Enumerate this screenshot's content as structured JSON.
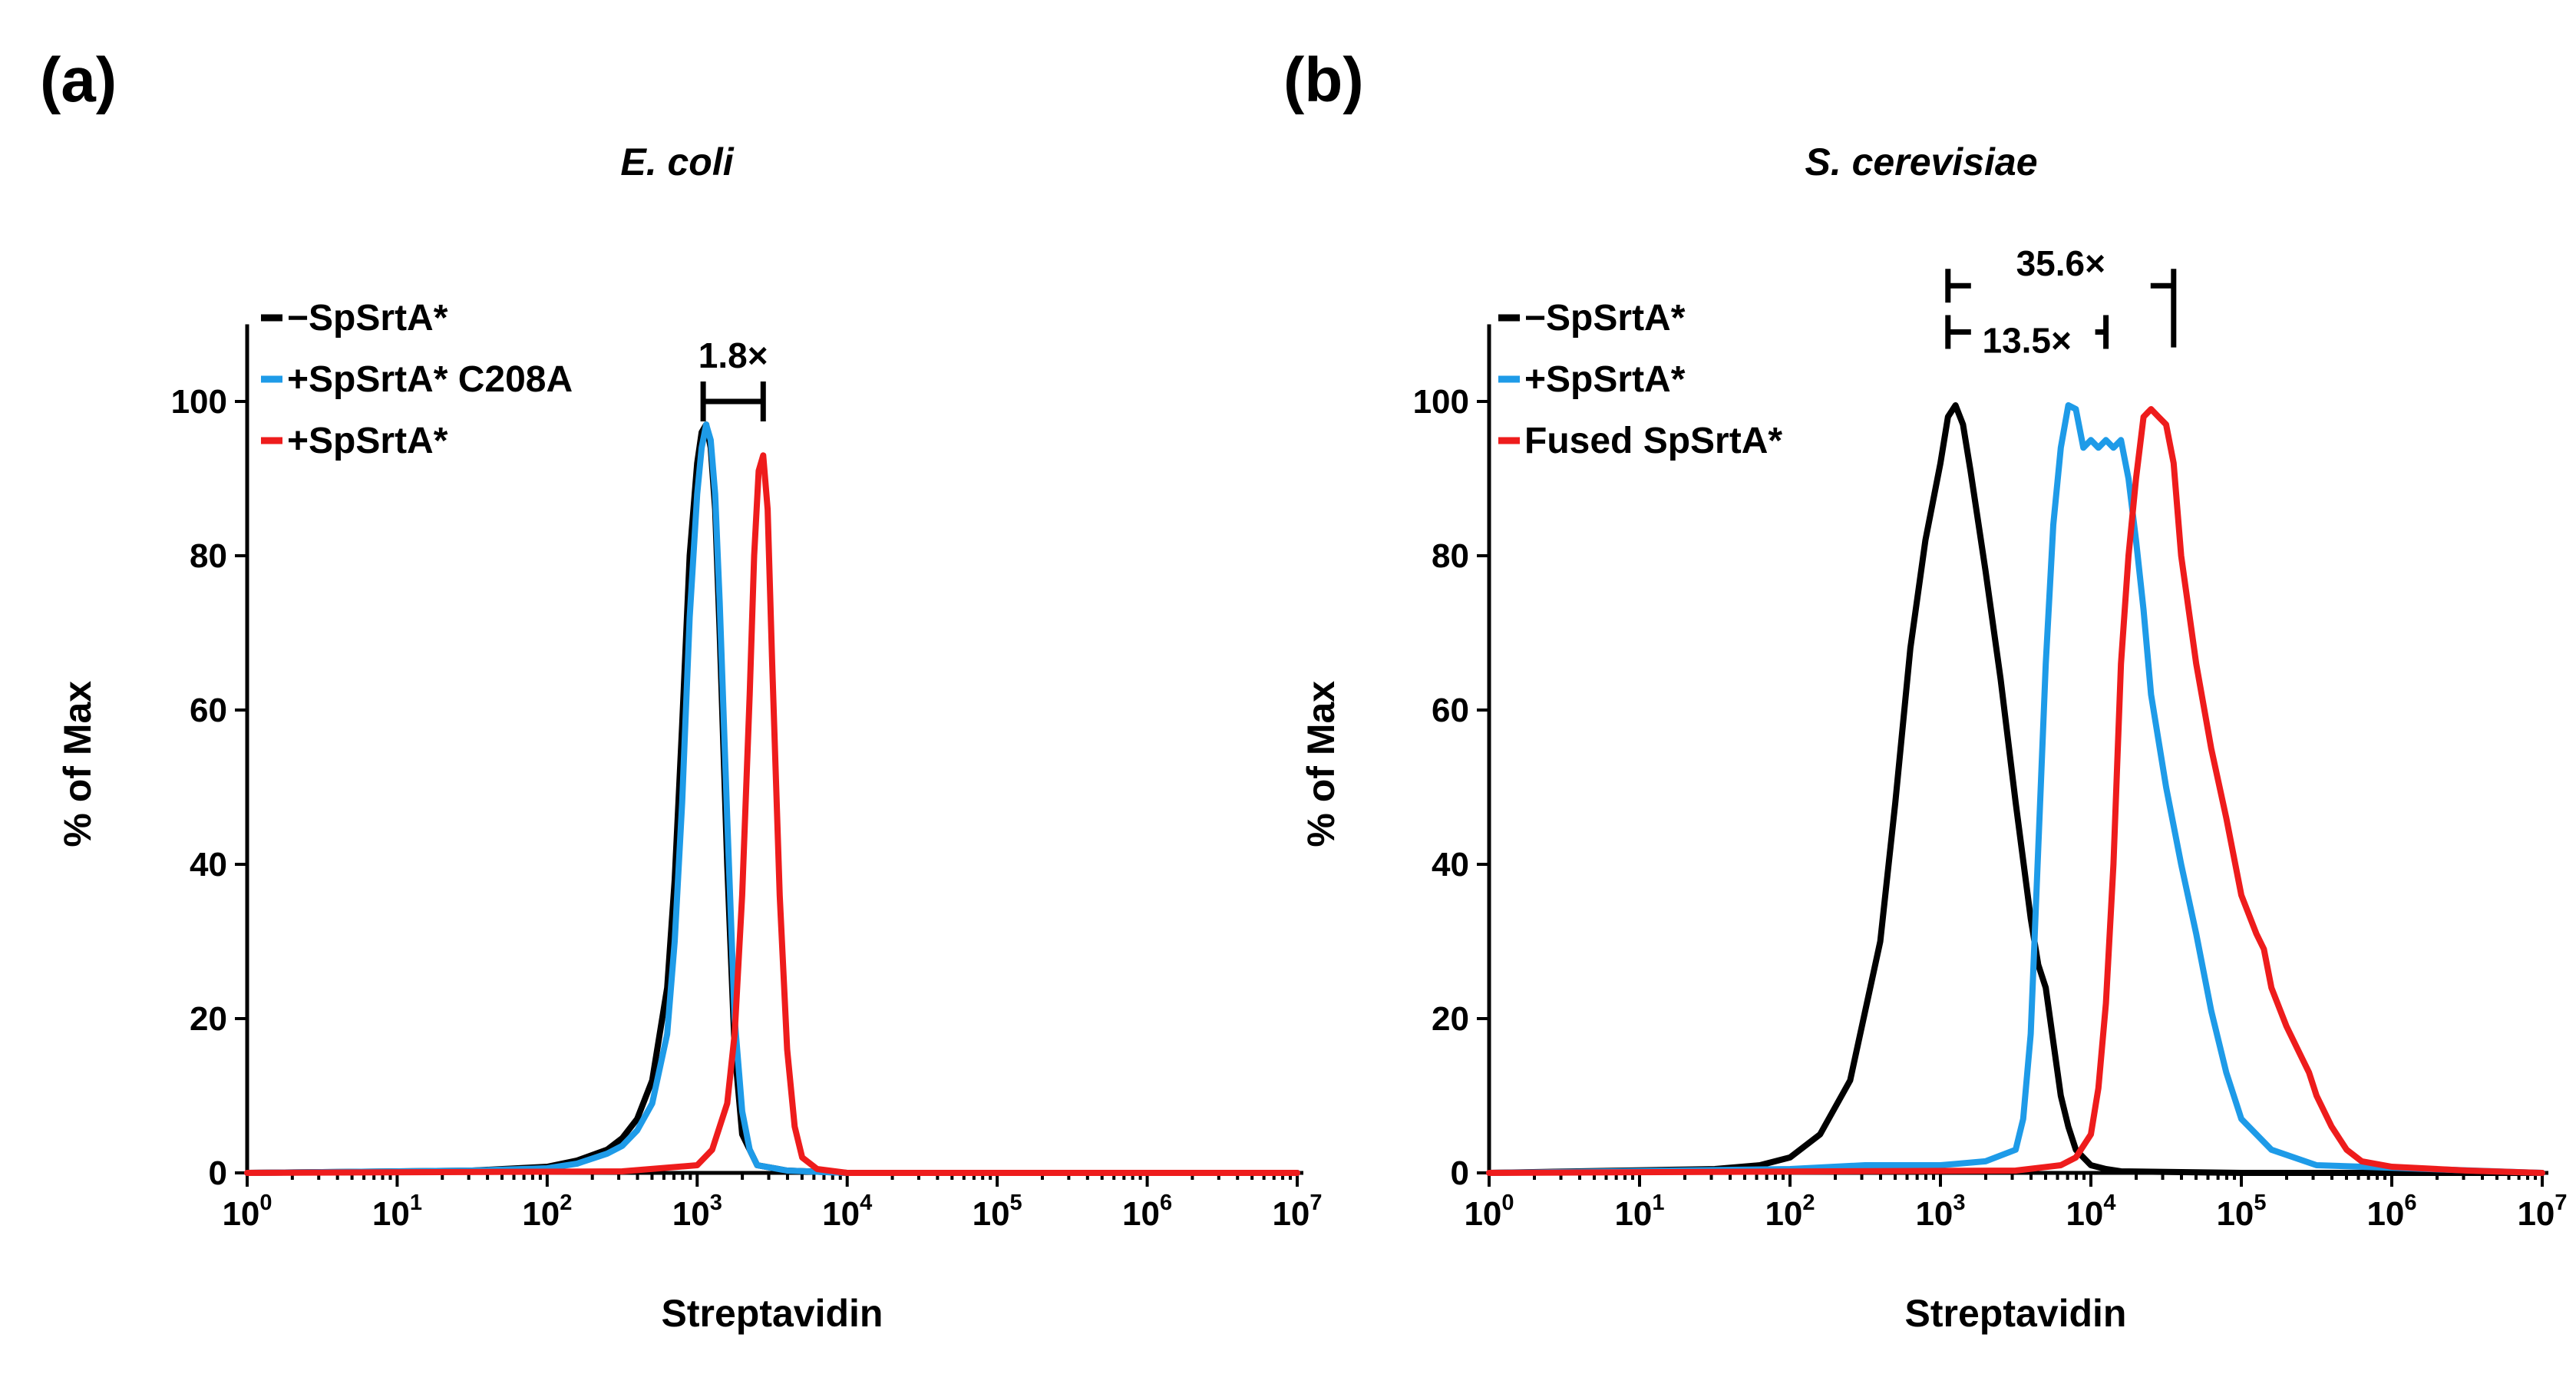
{
  "panels": [
    {
      "letter": "(a)"
    },
    {
      "letter": "(b)"
    }
  ],
  "chart_data": [
    {
      "type": "line",
      "title": "E. coli",
      "xlabel": "Streptavidin",
      "ylabel": "% of Max",
      "xscale": "log10",
      "xlim_exp": [
        0,
        7
      ],
      "ylim": [
        0,
        110
      ],
      "yticks": [
        0,
        20,
        40,
        60,
        80,
        100
      ],
      "xtick_base": "10",
      "xtick_exponents": [
        "0",
        "1",
        "2",
        "3",
        "4",
        "5",
        "6",
        "7"
      ],
      "legend_position": "top-left",
      "series": [
        {
          "name": "−SpSrtA*",
          "color": "#000000",
          "x": [
            0,
            1.5,
            2,
            2.2,
            2.4,
            2.5,
            2.6,
            2.7,
            2.8,
            2.85,
            2.9,
            2.95,
            3.0,
            3.03,
            3.06,
            3.09,
            3.12,
            3.15,
            3.2,
            3.25,
            3.3,
            3.4,
            3.6,
            4.0,
            7.0
          ],
          "y": [
            0,
            0.3,
            0.8,
            1.6,
            3,
            4.5,
            7,
            12,
            24,
            38,
            58,
            80,
            92,
            96,
            97,
            94,
            86,
            70,
            40,
            16,
            5,
            1,
            0.3,
            0,
            0
          ]
        },
        {
          "name": "+SpSrtA* C208A",
          "color": "#1e9be8",
          "x": [
            0,
            1.5,
            2,
            2.2,
            2.4,
            2.5,
            2.6,
            2.7,
            2.8,
            2.85,
            2.9,
            2.95,
            3.0,
            3.03,
            3.06,
            3.09,
            3.12,
            3.15,
            3.2,
            3.25,
            3.3,
            3.35,
            3.4,
            3.6,
            4.0,
            7.0
          ],
          "y": [
            0,
            0.3,
            0.6,
            1.2,
            2.5,
            3.5,
            5.5,
            9,
            18,
            30,
            48,
            72,
            88,
            94,
            97,
            95,
            88,
            74,
            46,
            20,
            8,
            3,
            1,
            0.3,
            0,
            0
          ]
        },
        {
          "name": "+SpSrtA*",
          "color": "#ee1c1c",
          "x": [
            0,
            2.5,
            3.0,
            3.1,
            3.2,
            3.25,
            3.3,
            3.35,
            3.38,
            3.41,
            3.44,
            3.47,
            3.5,
            3.55,
            3.6,
            3.65,
            3.7,
            3.8,
            4.0,
            7.0
          ],
          "y": [
            0,
            0.2,
            1,
            3,
            9,
            18,
            36,
            62,
            80,
            91,
            93,
            86,
            66,
            36,
            16,
            6,
            2,
            0.5,
            0,
            0
          ]
        }
      ],
      "annotations": [
        {
          "text": "1.8×",
          "x_from": 3.04,
          "x_to": 3.44,
          "y_text": 104,
          "y_bar": 100
        }
      ]
    },
    {
      "type": "line",
      "title": "S. cerevisiae",
      "xlabel": "Streptavidin",
      "ylabel": "% of Max",
      "xscale": "log10",
      "xlim_exp": [
        0,
        7
      ],
      "ylim": [
        0,
        110
      ],
      "yticks": [
        0,
        20,
        40,
        60,
        80,
        100
      ],
      "xtick_base": "10",
      "xtick_exponents": [
        "0",
        "1",
        "2",
        "3",
        "4",
        "5",
        "6",
        "7"
      ],
      "legend_position": "top-left",
      "series": [
        {
          "name": "−SpSrtA*",
          "color": "#000000",
          "x": [
            0,
            1.5,
            1.8,
            2.0,
            2.2,
            2.4,
            2.6,
            2.7,
            2.8,
            2.9,
            3.0,
            3.05,
            3.1,
            3.15,
            3.2,
            3.3,
            3.4,
            3.5,
            3.6,
            3.65,
            3.7,
            3.75,
            3.8,
            3.85,
            3.9,
            4.0,
            4.1,
            4.2,
            5.0,
            7.0
          ],
          "y": [
            0,
            0.5,
            1,
            2,
            5,
            12,
            30,
            48,
            68,
            82,
            92,
            98,
            99.5,
            97,
            91,
            78,
            64,
            48,
            33,
            27,
            24,
            17,
            10,
            6,
            3,
            1,
            0.5,
            0.2,
            0,
            0
          ]
        },
        {
          "name": "+SpSrtA*",
          "color": "#1e9be8",
          "x": [
            0,
            2.0,
            2.5,
            3.0,
            3.3,
            3.5,
            3.55,
            3.6,
            3.65,
            3.7,
            3.75,
            3.8,
            3.85,
            3.9,
            3.95,
            4.0,
            4.05,
            4.1,
            4.15,
            4.2,
            4.25,
            4.3,
            4.35,
            4.4,
            4.5,
            4.6,
            4.7,
            4.8,
            4.9,
            5.0,
            5.2,
            5.5,
            7.0
          ],
          "y": [
            0,
            0.5,
            1,
            1,
            1.5,
            3,
            7,
            18,
            42,
            66,
            84,
            94,
            99.5,
            99,
            94,
            95,
            94,
            95,
            94,
            95,
            90,
            82,
            73,
            62,
            50,
            40,
            31,
            21,
            13,
            7,
            3,
            1,
            0
          ]
        },
        {
          "name": "Fused SpSrtA*",
          "color": "#ee1c1c",
          "x": [
            0,
            3.5,
            3.8,
            3.9,
            4.0,
            4.05,
            4.1,
            4.15,
            4.2,
            4.25,
            4.3,
            4.35,
            4.4,
            4.45,
            4.5,
            4.55,
            4.6,
            4.7,
            4.8,
            4.9,
            5.0,
            5.1,
            5.15,
            5.2,
            5.3,
            5.4,
            5.45,
            5.5,
            5.6,
            5.7,
            5.8,
            6.0,
            6.5,
            7.0
          ],
          "y": [
            0,
            0.3,
            1,
            2,
            5,
            11,
            22,
            40,
            66,
            80,
            90,
            98,
            99,
            98,
            97,
            92,
            80,
            66,
            55,
            46,
            36,
            31,
            29,
            24,
            19,
            15,
            13,
            10,
            6,
            3,
            1.5,
            0.8,
            0.3,
            0
          ]
        }
      ],
      "annotations": [
        {
          "text": "35.6×",
          "x_from": 3.05,
          "x_to": 4.55,
          "y_text": 118,
          "y_bar": 115
        },
        {
          "text": "13.5×",
          "x_from": 3.05,
          "x_to": 4.1,
          "y_text": 108,
          "y_bar": 109
        }
      ]
    }
  ]
}
